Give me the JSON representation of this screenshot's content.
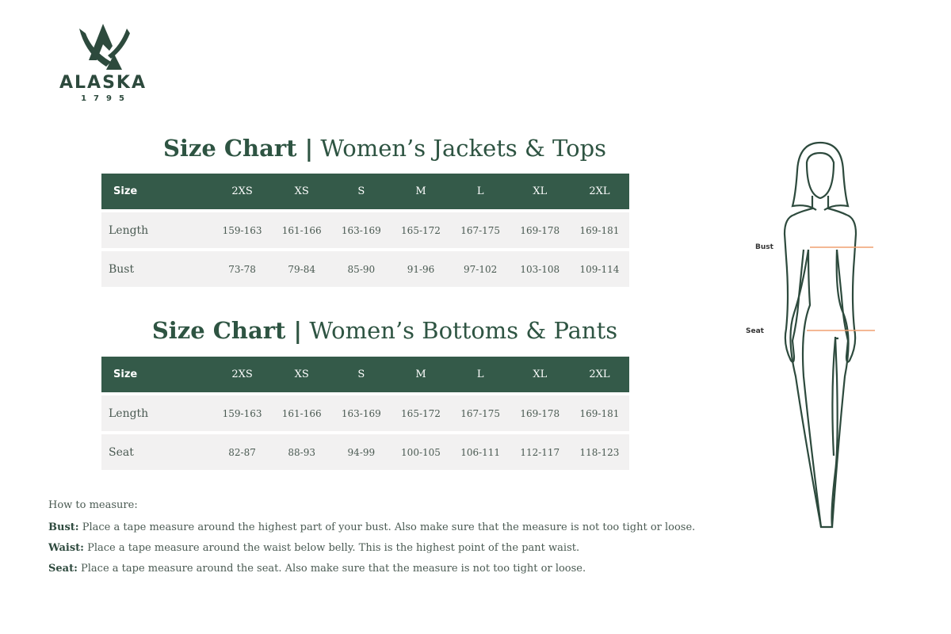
{
  "logo": {
    "name": "ALASKA",
    "year": "1795"
  },
  "tables": [
    {
      "title_bold": "Size Chart |",
      "title_rest": "Women’s Jackets & Tops",
      "headers": [
        "Size",
        "2XS",
        "XS",
        "S",
        "M",
        "L",
        "XL",
        "2XL"
      ],
      "rows": [
        [
          "Length",
          "159-163",
          "161-166",
          "163-169",
          "165-172",
          "167-175",
          "169-178",
          "169-181"
        ],
        [
          "Bust",
          "73-78",
          "79-84",
          "85-90",
          "91-96",
          "97-102",
          "103-108",
          "109-114"
        ]
      ]
    },
    {
      "title_bold": "Size Chart |",
      "title_rest": "Women’s Bottoms & Pants",
      "headers": [
        "Size",
        "2XS",
        "XS",
        "S",
        "M",
        "L",
        "XL",
        "2XL"
      ],
      "rows": [
        [
          "Length",
          "159-163",
          "161-166",
          "163-169",
          "165-172",
          "167-175",
          "169-178",
          "169-181"
        ],
        [
          "Seat",
          "82-87",
          "88-93",
          "94-99",
          "100-105",
          "106-111",
          "112-117",
          "118-123"
        ]
      ]
    }
  ],
  "how": {
    "heading": "How to measure:",
    "items": [
      {
        "term": "Bust:",
        "text": " Place a tape measure around the highest part of your bust. Also make sure that the measure is not too tight or loose."
      },
      {
        "term": "Waist:",
        "text": " Place a tape measure around the waist below belly. This is the highest point of the pant waist."
      },
      {
        "term": "Seat:",
        "text": " Place a tape measure around the seat. Also make sure that the measure is not too tight or loose."
      }
    ]
  },
  "figure": {
    "bust_label": "Bust",
    "seat_label": "Seat",
    "tape_color": "#f0a070",
    "outline_color": "#2d4a3d"
  }
}
